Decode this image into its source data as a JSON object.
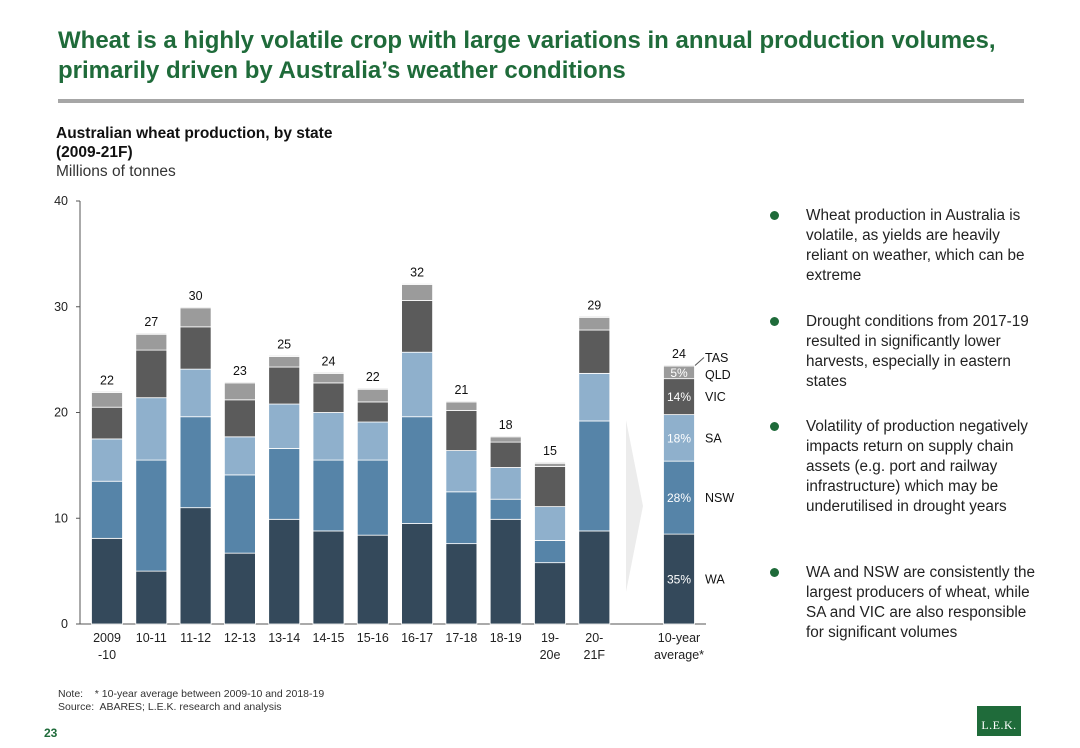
{
  "slide": {
    "title": "Wheat is a highly volatile crop with large variations in annual production volumes, primarily driven by Australia’s weather conditions",
    "chart_title": "Australian wheat production, by state",
    "chart_title_2": "(2009-21F)",
    "chart_subtitle": "Millions of tonnes",
    "note_line": "Note:    * 10-year average between 2009-10 and 2018-19",
    "source_line": "Source:  ABARES; L.E.K. research and analysis",
    "page_number": "23",
    "logo_text": "L.E.K."
  },
  "bullets": [
    "Wheat production in Australia is volatile, as yields are heavily reliant on weather, which can be extreme",
    "Drought conditions from 2017-19 resulted in significantly lower harvests, especially in eastern states",
    "Volatility of production negatively impacts return on supply chain assets (e.g. port and railway infrastructure) which may be underutilised in drought years",
    "WA and NSW are consistently the largest producers of wheat, while SA and VIC are also responsible for significant volumes"
  ],
  "colors": {
    "title_green": "#1f6b3a",
    "WA": "#34495b",
    "NSW": "#5684a8",
    "SA": "#8fb0cc",
    "VIC": "#5b5b5b",
    "QLD": "#9b9b9b",
    "TAS": "#c9c9c9"
  },
  "chart_data": {
    "type": "bar",
    "stacked": true,
    "categories": [
      [
        "2009",
        "-10"
      ],
      [
        "10-11"
      ],
      [
        "11-12"
      ],
      [
        "12-13"
      ],
      [
        "13-14"
      ],
      [
        "14-15"
      ],
      [
        "15-16"
      ],
      [
        "16-17"
      ],
      [
        "17-18"
      ],
      [
        "18-19"
      ],
      [
        "19-",
        "20e"
      ],
      [
        "20-",
        "21F"
      ],
      [
        "10-year",
        "average*"
      ]
    ],
    "series": [
      {
        "name": "WA",
        "values": [
          8.1,
          5.0,
          11.0,
          6.7,
          9.9,
          8.8,
          8.4,
          9.5,
          7.6,
          9.9,
          5.8,
          8.8,
          8.5
        ]
      },
      {
        "name": "NSW",
        "values": [
          5.4,
          10.5,
          8.6,
          7.4,
          6.7,
          6.7,
          7.1,
          10.1,
          4.9,
          1.9,
          2.1,
          10.4,
          6.9
        ]
      },
      {
        "name": "SA",
        "values": [
          4.0,
          5.9,
          4.5,
          3.6,
          4.2,
          4.5,
          3.6,
          6.1,
          3.9,
          3.0,
          3.2,
          4.5,
          4.4
        ]
      },
      {
        "name": "VIC",
        "values": [
          3.0,
          4.5,
          4.0,
          3.5,
          3.5,
          2.8,
          1.9,
          4.9,
          3.8,
          2.4,
          3.8,
          4.1,
          3.4
        ]
      },
      {
        "name": "QLD",
        "values": [
          1.4,
          1.5,
          1.8,
          1.6,
          1.0,
          0.9,
          1.2,
          1.5,
          0.8,
          0.5,
          0.3,
          1.2,
          1.2
        ]
      },
      {
        "name": "TAS",
        "values": [
          0.1,
          0.1,
          0.1,
          0.1,
          0.1,
          0.1,
          0.1,
          0.1,
          0.1,
          0.1,
          0.1,
          0.1,
          0.1
        ]
      }
    ],
    "totals": [
      "22",
      "27",
      "30",
      "23",
      "25",
      "24",
      "22",
      "32",
      "21",
      "18",
      "15",
      "29",
      "24"
    ],
    "average_shares": [
      {
        "series": "WA",
        "label": "35%"
      },
      {
        "series": "NSW",
        "label": "28%"
      },
      {
        "series": "SA",
        "label": "18%"
      },
      {
        "series": "VIC",
        "label": "14%"
      },
      {
        "series": "QLD",
        "label": "5%"
      }
    ],
    "legend_labels": [
      "WA",
      "NSW",
      "SA",
      "VIC",
      "QLD",
      "TAS"
    ],
    "yticks": [
      0,
      10,
      20,
      30,
      40
    ],
    "ylim": [
      0,
      40
    ],
    "title": "Australian wheat production, by state",
    "ylabel": "Millions of tonnes"
  }
}
